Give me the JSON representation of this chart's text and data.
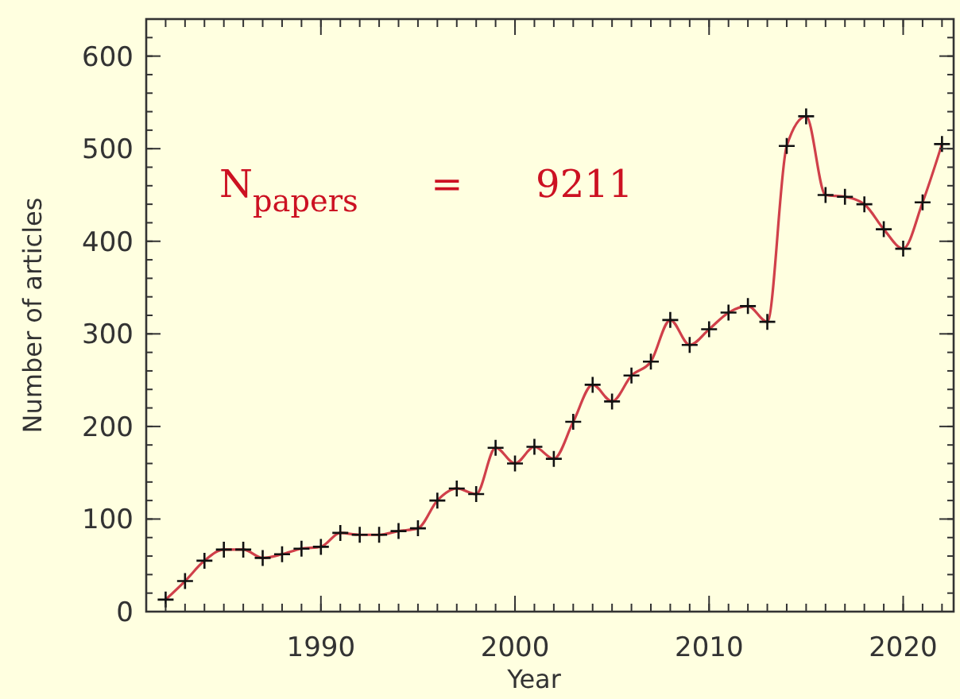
{
  "chart_data": {
    "type": "line",
    "xlabel": "Year",
    "ylabel": "Number of articles",
    "annotations": [
      "N$_{papers}$ = 9211"
    ],
    "x": [
      1982,
      1983,
      1984,
      1985,
      1986,
      1987,
      1988,
      1989,
      1990,
      1991,
      1992,
      1993,
      1994,
      1995,
      1996,
      1997,
      1998,
      1999,
      2000,
      2001,
      2002,
      2003,
      2004,
      2005,
      2006,
      2007,
      2008,
      2009,
      2010,
      2011,
      2012,
      2013,
      2014,
      2015,
      2016,
      2017,
      2018,
      2019,
      2020,
      2021,
      2022
    ],
    "series": [
      {
        "color": "#d0404a",
        "values": [
          13,
          33,
          55,
          67,
          67,
          58,
          62,
          68,
          70,
          85,
          83,
          83,
          87,
          90,
          120,
          133,
          127,
          177,
          160,
          178,
          165,
          205,
          245,
          227,
          255,
          270,
          315,
          288,
          305,
          323,
          330,
          313,
          503,
          535,
          450,
          448,
          440,
          413,
          392,
          442,
          505
        ]
      }
    ],
    "xlim": [
      1981,
      2022.6
    ],
    "xticks": [
      1990,
      2000,
      2010,
      2020
    ],
    "ylim": [
      0,
      640
    ],
    "yticks": [
      0,
      100,
      200,
      300,
      400,
      500,
      600
    ],
    "grid": false,
    "marker": "cross",
    "line_style": "solid"
  }
}
